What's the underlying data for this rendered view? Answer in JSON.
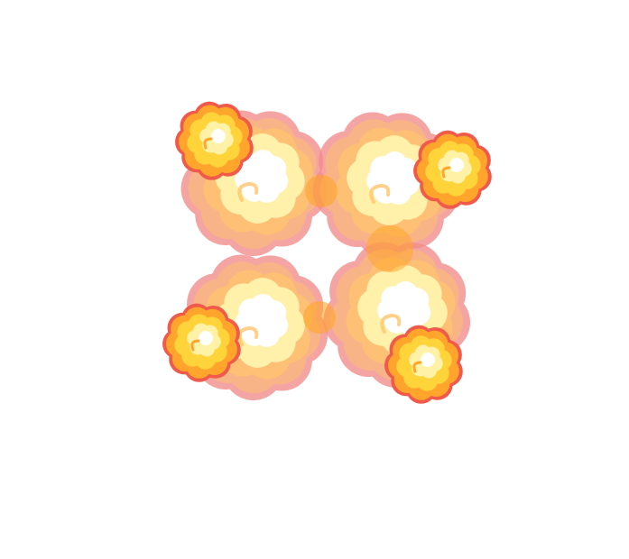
{
  "scene": {
    "background": "#ffffff",
    "subject": "explosion-smoke-clouds",
    "palette": {
      "outline_pink": "#F28B8B",
      "outer_peach": "#F9B07A",
      "mid_orange": "#FFC061",
      "inner_yellow": "#FFF1A6",
      "core_white": "#FFFFFF",
      "small_outline": "#F05A4A",
      "small_orange": "#FFA52B",
      "small_yellow": "#FFD43B"
    },
    "large_cloud_count": 4,
    "small_burst_count": 4
  }
}
